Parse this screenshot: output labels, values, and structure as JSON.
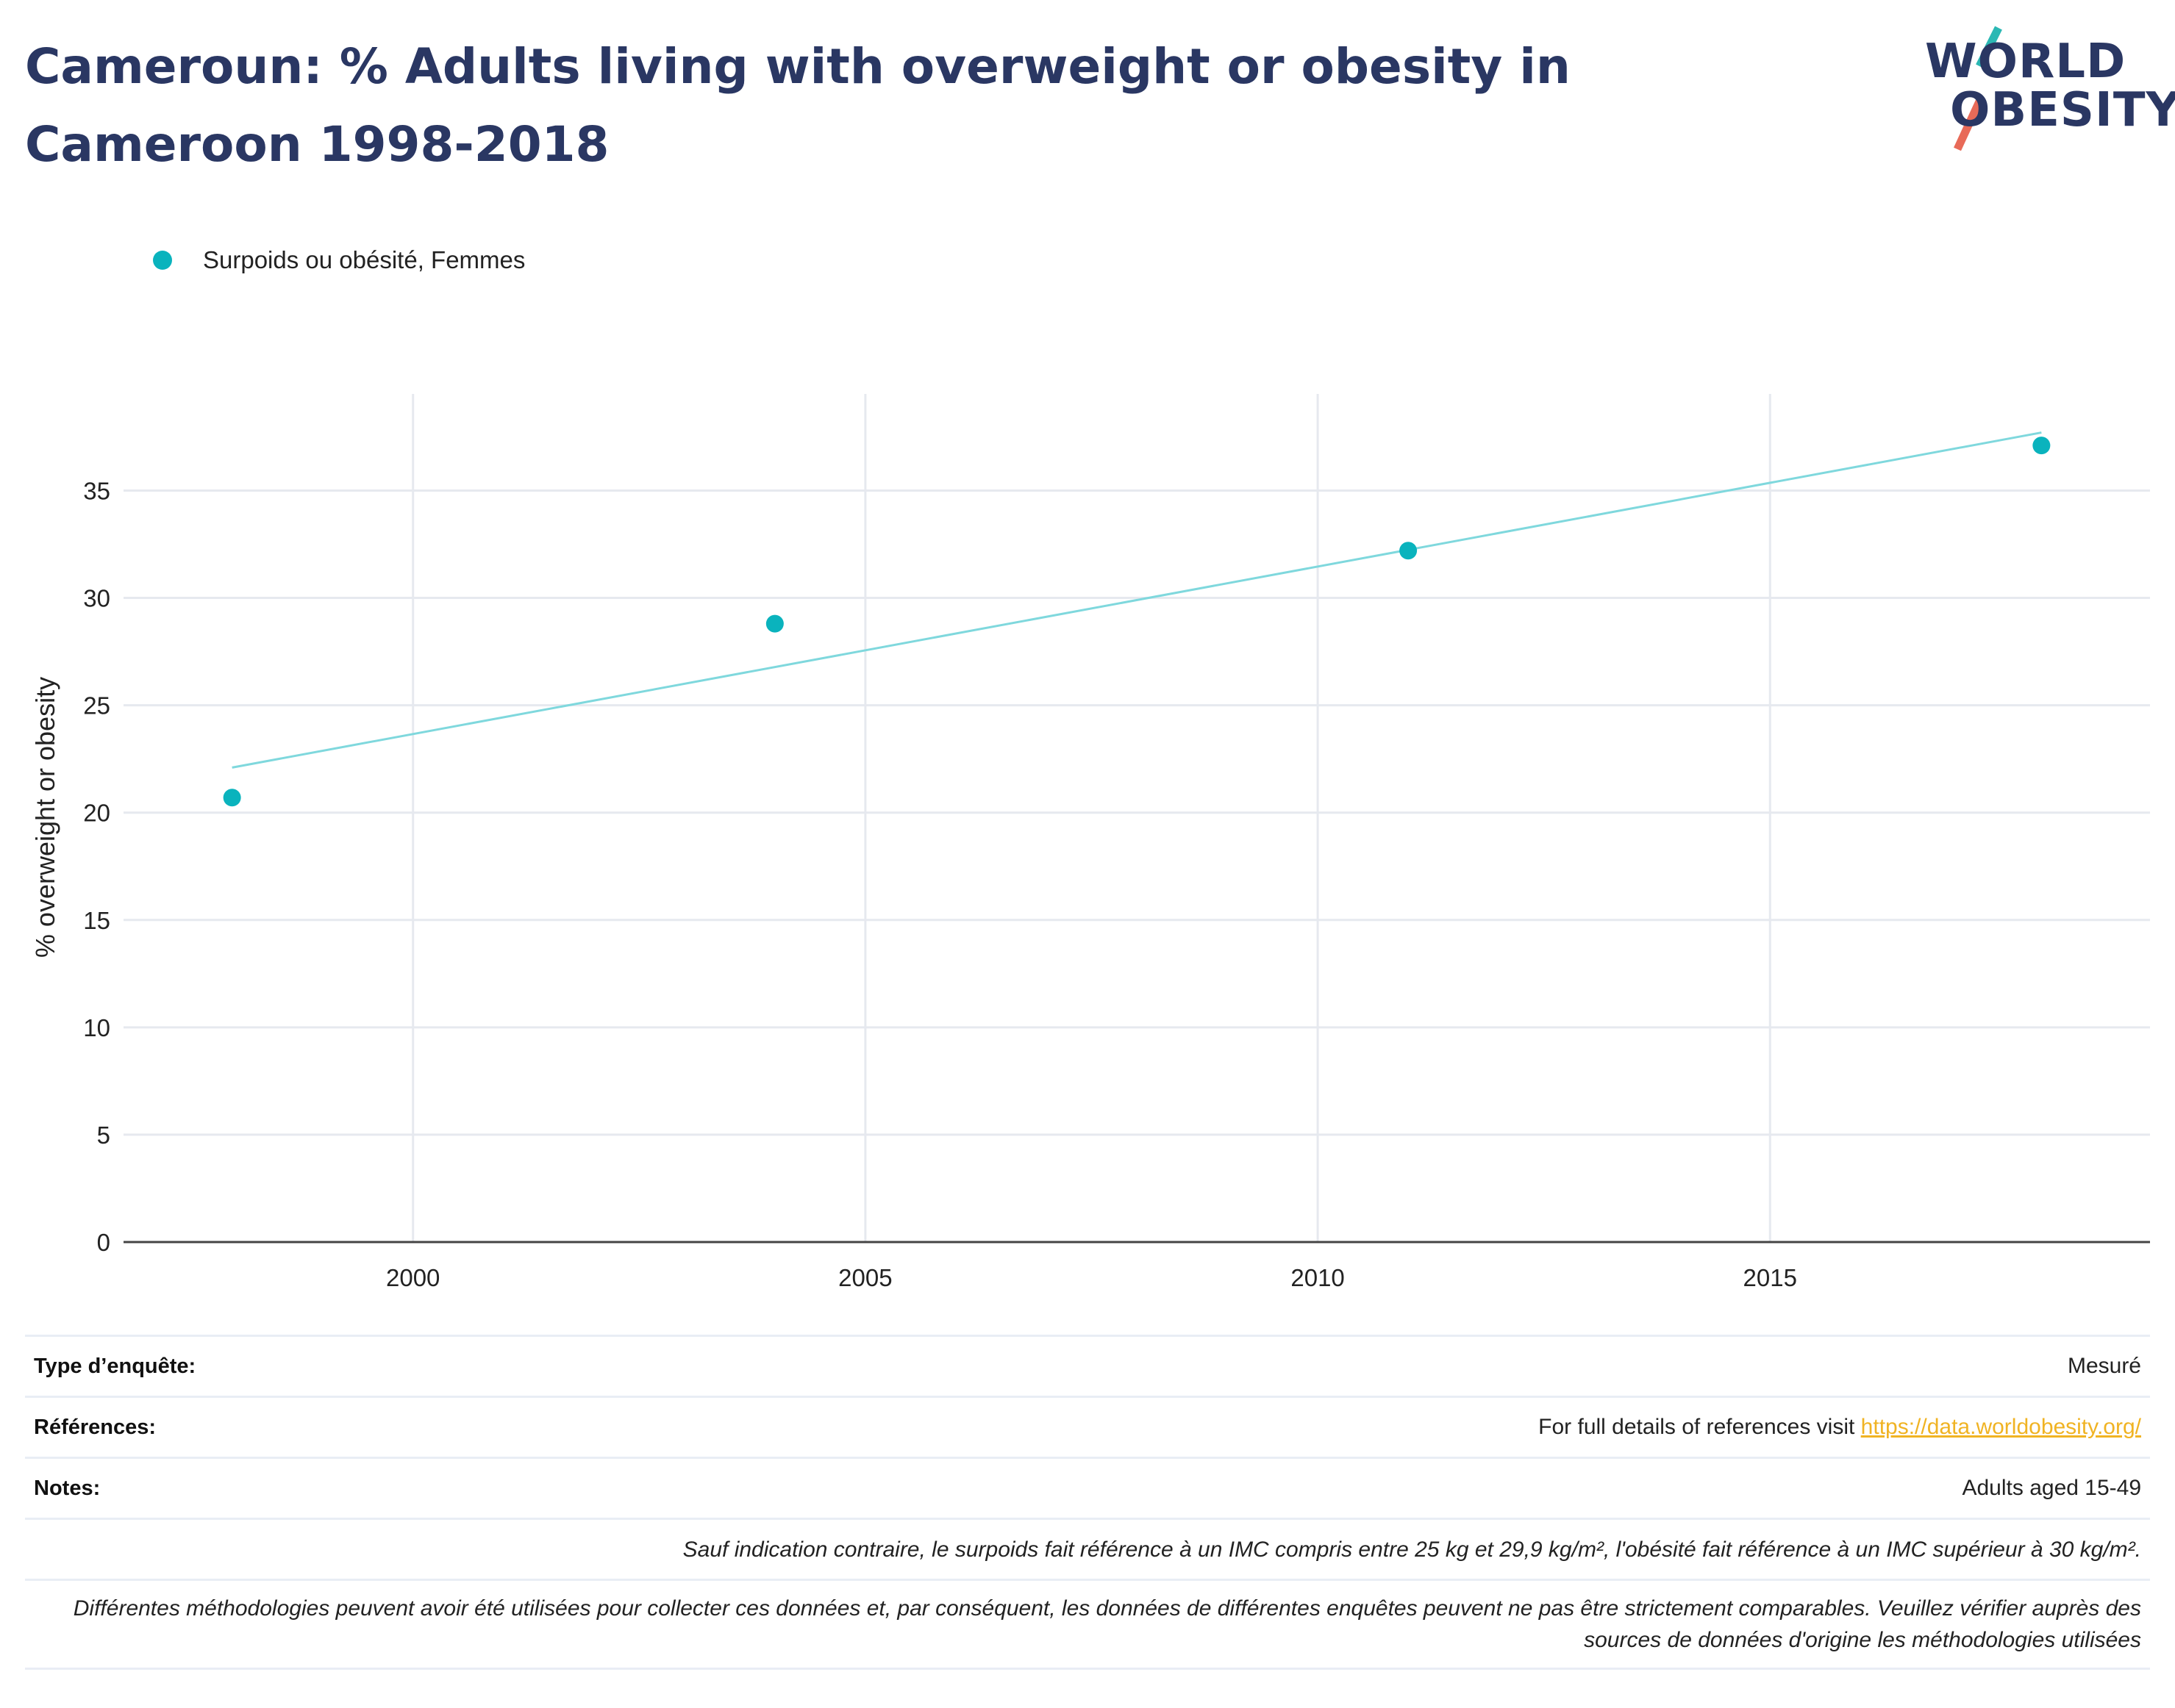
{
  "header": {
    "title": "Cameroun: % Adults living with overweight or obesity in Cameroon 1998-2018",
    "logo_line1": "WORLD",
    "logo_line2": "OBESITY"
  },
  "colors": {
    "title": "#2a3763",
    "series": "#0ab3bd",
    "trend": "#7fd8dd",
    "grid": "#e6e9ef",
    "axis": "#444444",
    "link": "#f0b323",
    "logo_teal": "#2bb8b4",
    "logo_coral": "#e86a58"
  },
  "chart_data": {
    "type": "scatter",
    "title": "Cameroun: % Adults living with overweight or obesity in Cameroon 1998-2018",
    "xlabel": "",
    "ylabel": "% overweight or obesity",
    "xlim": [
      1996.8,
      2019.2
    ],
    "ylim": [
      0,
      39.5
    ],
    "xticks": [
      2000,
      2005,
      2010,
      2015
    ],
    "yticks": [
      0,
      5,
      10,
      15,
      20,
      25,
      30,
      35
    ],
    "grid": true,
    "legend_position": "top-left",
    "series": [
      {
        "name": "Surpoids ou obésité, Femmes",
        "x": [
          1998,
          2004,
          2011,
          2018
        ],
        "y": [
          20.7,
          28.8,
          32.2,
          37.1
        ]
      }
    ],
    "trendline": {
      "x": [
        1998,
        2018
      ],
      "y": [
        22.1,
        37.7
      ]
    }
  },
  "info_table": {
    "survey_type": {
      "label": "Type d’enquête:",
      "value": "Mesuré"
    },
    "references": {
      "label": "Références:",
      "text": "For full details of references visit ",
      "link": "https://data.worldobesity.org/"
    },
    "notes": {
      "label": "Notes:",
      "value": "Adults aged 15-49",
      "note1": "Sauf indication contraire, le surpoids fait référence à un IMC compris entre 25 kg et 29,9 kg/m², l'obésité fait référence à un IMC supérieur à 30 kg/m².",
      "note2": "Différentes méthodologies peuvent avoir été utilisées pour collecter ces données et, par conséquent, les données de différentes enquêtes peuvent ne pas être strictement comparables. Veuillez vérifier auprès des sources de données d'origine les méthodologies utilisées"
    }
  }
}
